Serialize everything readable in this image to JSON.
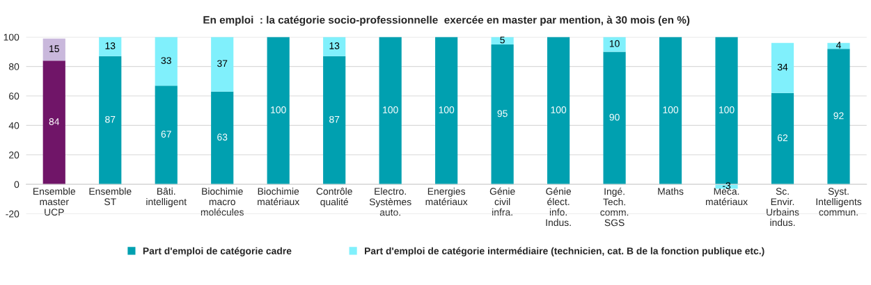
{
  "chart_data": {
    "type": "bar",
    "title": "En emploi  : la catégorie socio-professionnelle  exercée en master par mention, à 30 mois (en %)",
    "categories": [
      "Ensemble\nmaster\nUCP",
      "Ensemble\nST",
      "Bâti.\nintelligent",
      "Biochimie\nmacro\nmolécules",
      "Biochimie\nmatériaux",
      "Contrôle\nqualité",
      "Electro.\nSystèmes\nauto.",
      "Energies\nmatériaux",
      "Génie\ncivil\ninfra.",
      "Génie\nélect.\ninfo.\nIndus.",
      "Ingé.\nTech.\ncomm.\nSGS",
      "Maths",
      "Méca.\nmatériaux",
      "Sc.\nEnvir.\nUrbains\nindus.",
      "Syst.\nIntelligents\ncommun."
    ],
    "stacked": true,
    "series": [
      {
        "name": "Part d'emploi de catégorie cadre",
        "color": "#00a0b0",
        "colors": [
          "#701568",
          "#00a0b0",
          "#00a0b0",
          "#00a0b0",
          "#00a0b0",
          "#00a0b0",
          "#00a0b0",
          "#00a0b0",
          "#00a0b0",
          "#00a0b0",
          "#00a0b0",
          "#00a0b0",
          "#00a0b0",
          "#00a0b0",
          "#00a0b0"
        ],
        "values": [
          84,
          87,
          67,
          63,
          100,
          87,
          100,
          100,
          95,
          100,
          90,
          100,
          100,
          62,
          92
        ]
      },
      {
        "name": "Part d'emploi de catégorie intermédiaire (technicien, cat. B de la fonction publique etc.)",
        "color": "#80f0fc",
        "colors": [
          "#c9b8dc",
          "#80f0fc",
          "#80f0fc",
          "#80f0fc",
          "#80f0fc",
          "#80f0fc",
          "#80f0fc",
          "#80f0fc",
          "#80f0fc",
          "#80f0fc",
          "#80f0fc",
          "#80f0fc",
          "#80f0fc",
          "#80f0fc",
          "#80f0fc"
        ],
        "values": [
          15,
          13,
          33,
          37,
          null,
          13,
          null,
          null,
          5,
          null,
          10,
          null,
          -3,
          34,
          4
        ]
      }
    ],
    "ylim": [
      -20,
      100
    ],
    "yticks": [
      -20,
      0,
      20,
      40,
      60,
      80,
      100
    ],
    "grid": "y",
    "legend": "bottom",
    "data_labels": true
  }
}
